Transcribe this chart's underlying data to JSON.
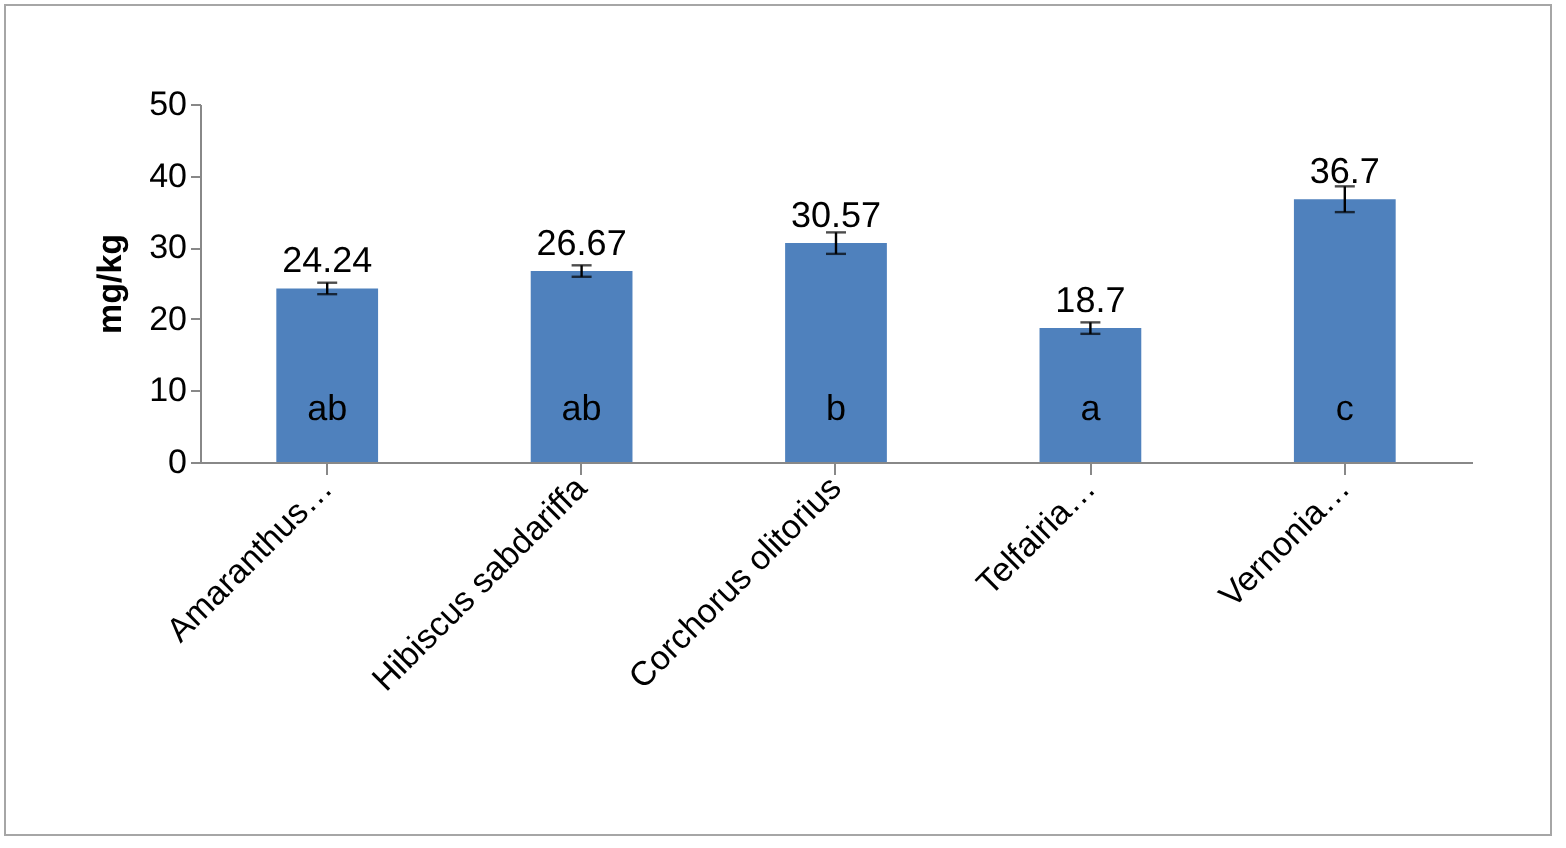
{
  "chart_data": {
    "type": "bar",
    "ylabel": "mg/kg",
    "categories": [
      "Amaranthus…",
      "Hibiscus sabdariffa",
      "Corchorus olitorius",
      "Telfairia…",
      "Vernonia…"
    ],
    "values": [
      24.24,
      26.67,
      30.57,
      18.7,
      36.7
    ],
    "errors": [
      0.8,
      0.8,
      1.5,
      0.8,
      1.8
    ],
    "color": "#4f81bd",
    "data_labels": true,
    "grid": false,
    "ylim": [
      0,
      50
    ],
    "yticks": [
      0,
      10,
      20,
      30,
      40,
      50
    ],
    "annotations": [
      "ab",
      "ab",
      "b",
      "a",
      "c"
    ]
  }
}
